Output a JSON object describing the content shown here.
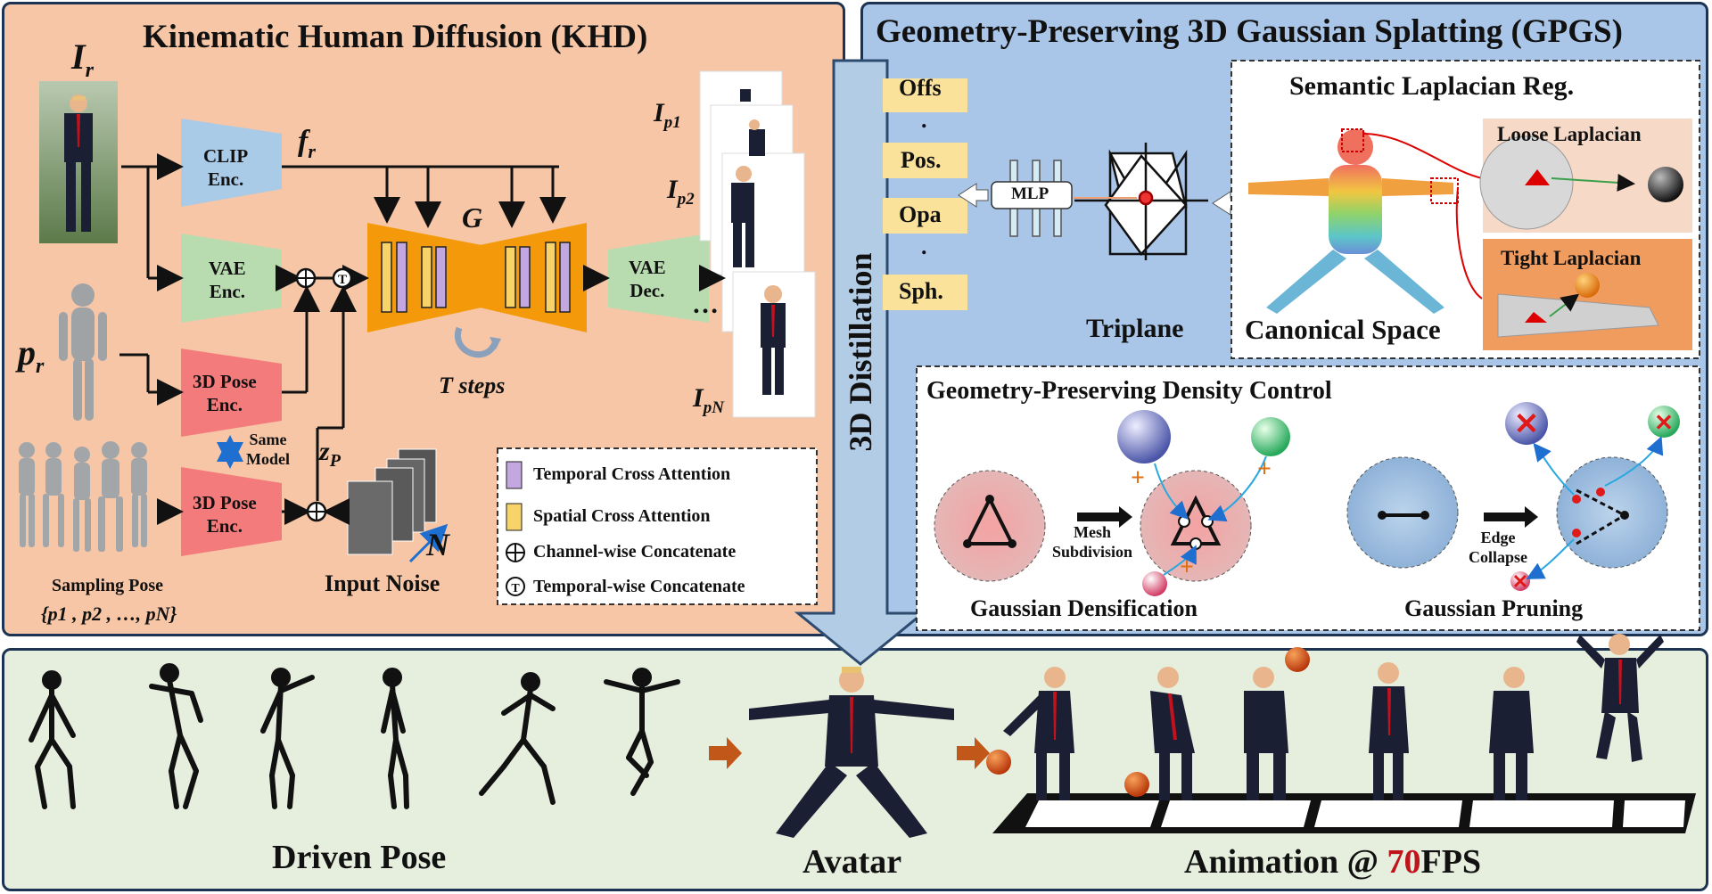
{
  "khd": {
    "title": "Kinematic Human Diffusion (KHD)",
    "I_r": "I",
    "I_r_sub": "r",
    "p_r": "p",
    "p_r_sub": "r",
    "f_r": "f",
    "f_r_sub": "r",
    "z_p": "z",
    "z_p_sub": "P",
    "G": "G",
    "clip_enc": [
      "CLIP",
      "Enc."
    ],
    "vae_enc": [
      "VAE",
      "Enc."
    ],
    "vae_dec": [
      "VAE",
      "Dec."
    ],
    "pose_enc_1": [
      "3D Pose",
      "Enc."
    ],
    "pose_enc_2": [
      "3D Pose",
      "Enc."
    ],
    "same_model": [
      "Same",
      "Model"
    ],
    "t_steps": "T steps",
    "sampling_pose": "Sampling Pose",
    "sampling_set": "{p1 , p2 , …, pN}",
    "input_noise": "Input Noise",
    "N": "N",
    "outputs": [
      {
        "label": "I",
        "sub": "p1"
      },
      {
        "label": "I",
        "sub": "p2"
      },
      {
        "label": "I",
        "sub": "pN"
      }
    ],
    "ellipsis": "…",
    "legend": [
      {
        "label": "Temporal Cross Attention",
        "color": "#c3a7e0"
      },
      {
        "label": "Spatial Cross Attention",
        "color": "#f7d36a"
      },
      {
        "label": "Channel-wise Concatenate",
        "symbol": "⊕"
      },
      {
        "label": "Temporal-wise Concatenate",
        "symbol": "Ⓣ"
      }
    ]
  },
  "distillation": "3D Distillation",
  "gpgs": {
    "title": "Geometry-Preserving 3D Gaussian Splatting (GPGS)",
    "attrs": [
      "Offs",
      ".",
      "Pos.",
      "Opa",
      ".",
      "Sph."
    ],
    "mlp": "MLP",
    "triplane": "Triplane",
    "semantic_title": "Semantic Laplacian Reg.",
    "canonical_space": "Canonical Space",
    "loose": "Loose Laplacian",
    "tight": "Tight Laplacian",
    "density_title": "Geometry-Preserving Density Control",
    "mesh_subdivision": [
      "Mesh",
      "Subdivision"
    ],
    "edge_collapse": [
      "Edge",
      "Collapse"
    ],
    "densification": "Gaussian Densification",
    "pruning": "Gaussian Pruning"
  },
  "bottom": {
    "driven_pose": "Driven Pose",
    "avatar": "Avatar",
    "animation_prefix": "Animation @ ",
    "animation_fps": "70",
    "animation_suffix": "FPS"
  },
  "colors": {
    "khd_bg": "#f6c6a6",
    "gpgs_bg": "#a9c5e8",
    "bottom_bg": "#e6eedd",
    "clip": "#a9cbe8",
    "vae": "#b8dcb0",
    "pose": "#f47b7b",
    "unet": "#f49a0a",
    "fps_red": "#c0141c"
  }
}
